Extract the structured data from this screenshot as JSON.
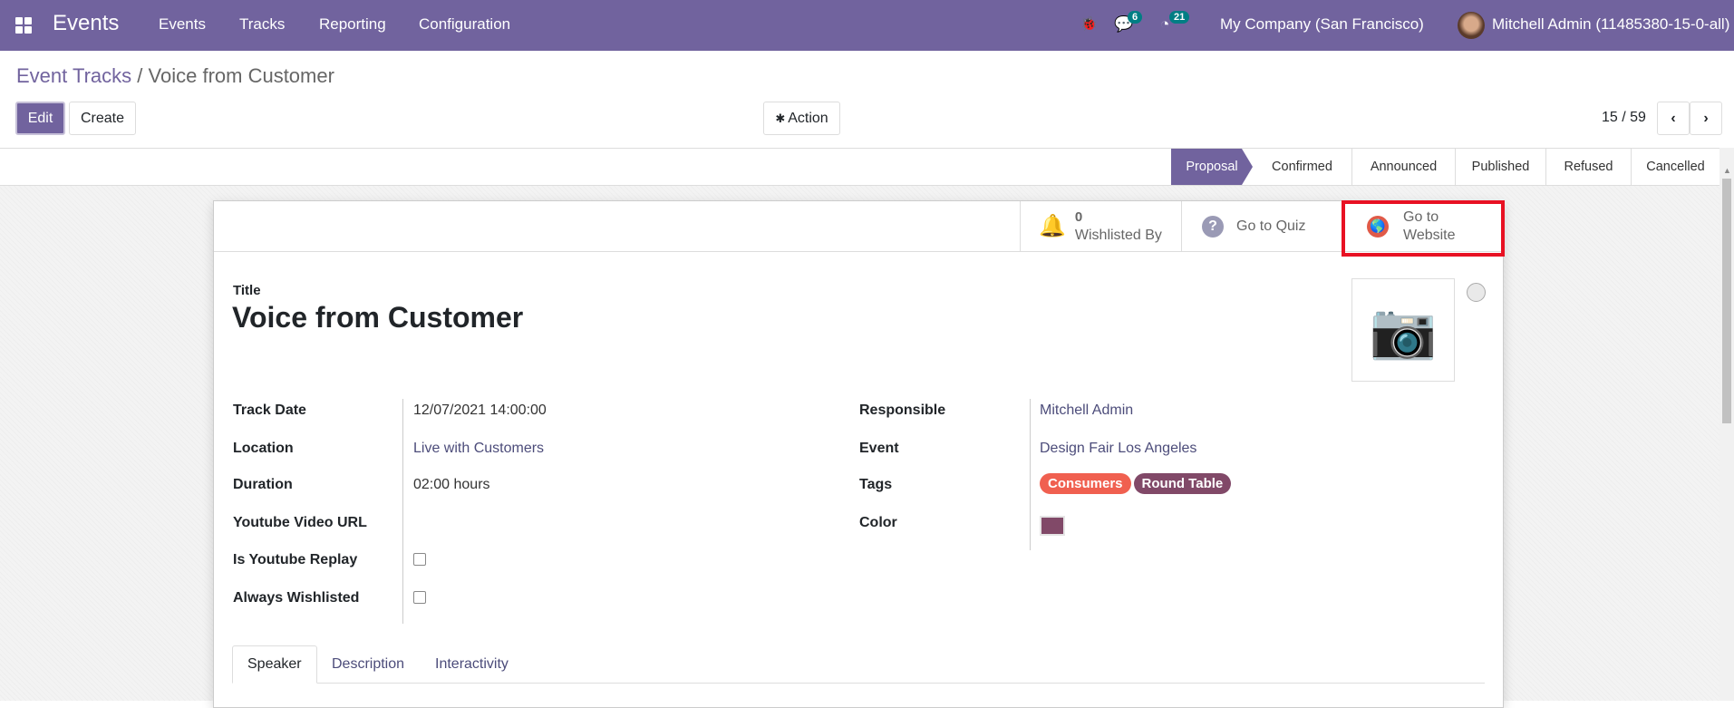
{
  "nav": {
    "app_title": "Events",
    "menu": [
      "Events",
      "Tracks",
      "Reporting",
      "Configuration"
    ],
    "messages_count": "6",
    "activities_count": "21",
    "company": "My Company (San Francisco)",
    "user": "Mitchell Admin (11485380-15-0-all)"
  },
  "breadcrumb": {
    "parent": "Event Tracks",
    "separator": "/",
    "current": "Voice from Customer"
  },
  "toolbar": {
    "edit": "Edit",
    "create": "Create",
    "action": "Action",
    "pager": "15 / 59"
  },
  "stages": [
    {
      "label": "Proposal",
      "active": true
    },
    {
      "label": "Confirmed"
    },
    {
      "label": "Announced"
    },
    {
      "label": "Published"
    },
    {
      "label": "Refused"
    },
    {
      "label": "Cancelled"
    }
  ],
  "smart_buttons": {
    "wishlist_count": "0",
    "wishlist_label": "Wishlisted By",
    "quiz": "Go to Quiz",
    "website": "Go to Website"
  },
  "form": {
    "title_label": "Title",
    "title": "Voice from Customer",
    "left": [
      {
        "label": "Track Date",
        "value": "12/07/2021 14:00:00"
      },
      {
        "label": "Location",
        "value": "Live with Customers"
      },
      {
        "label": "Duration",
        "value": "02:00",
        "unit": "hours"
      },
      {
        "label": "Youtube Video URL",
        "value": ""
      },
      {
        "label": "Is Youtube Replay",
        "checked": false
      },
      {
        "label": "Always Wishlisted",
        "checked": false
      }
    ],
    "right": [
      {
        "label": "Responsible",
        "value": "Mitchell Admin"
      },
      {
        "label": "Event",
        "value": "Design Fair Los Angeles"
      },
      {
        "label": "Tags",
        "tags": [
          {
            "name": "Consumers",
            "color": "#f06050"
          },
          {
            "name": "Round Table",
            "color": "#814968"
          }
        ]
      },
      {
        "label": "Color",
        "color": "#814968"
      }
    ]
  },
  "tabs": [
    {
      "label": "Speaker",
      "active": true
    },
    {
      "label": "Description"
    },
    {
      "label": "Interactivity"
    }
  ],
  "colors": {
    "brand": "#71639e",
    "highlight": "#e81123"
  }
}
